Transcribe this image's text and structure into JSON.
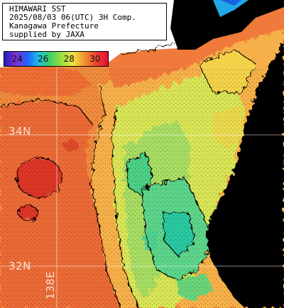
{
  "title": {
    "line1": "HIMAWARI SST",
    "line2": "2025/08/03 06(UTC) 3H Comp.",
    "line3": "Kanagawa Prefecture",
    "line4": "supplied by JAXA"
  },
  "legend": {
    "ticks": [
      "24",
      "26",
      "28",
      "30"
    ],
    "tick_values": [
      24,
      26,
      28,
      30
    ],
    "range": [
      23,
      31
    ],
    "colors": [
      "#2020c0",
      "#8030d0",
      "#2060ff",
      "#20c0e0",
      "#40d060",
      "#a0e040",
      "#f0e040",
      "#f09030",
      "#f04030",
      "#e01030"
    ]
  },
  "grid_labels": {
    "lat_34": "34N",
    "lat_32": "32N",
    "lon_138": "138E"
  },
  "colors": {
    "land": "#000000",
    "warm_sea": "#f08a3c",
    "hot_sea": "#e8402c",
    "mid_sea": "#f6b84a",
    "cool_sea": "#b8e060",
    "cold_sea": "#50d488",
    "cloud": "#ffffff"
  }
}
